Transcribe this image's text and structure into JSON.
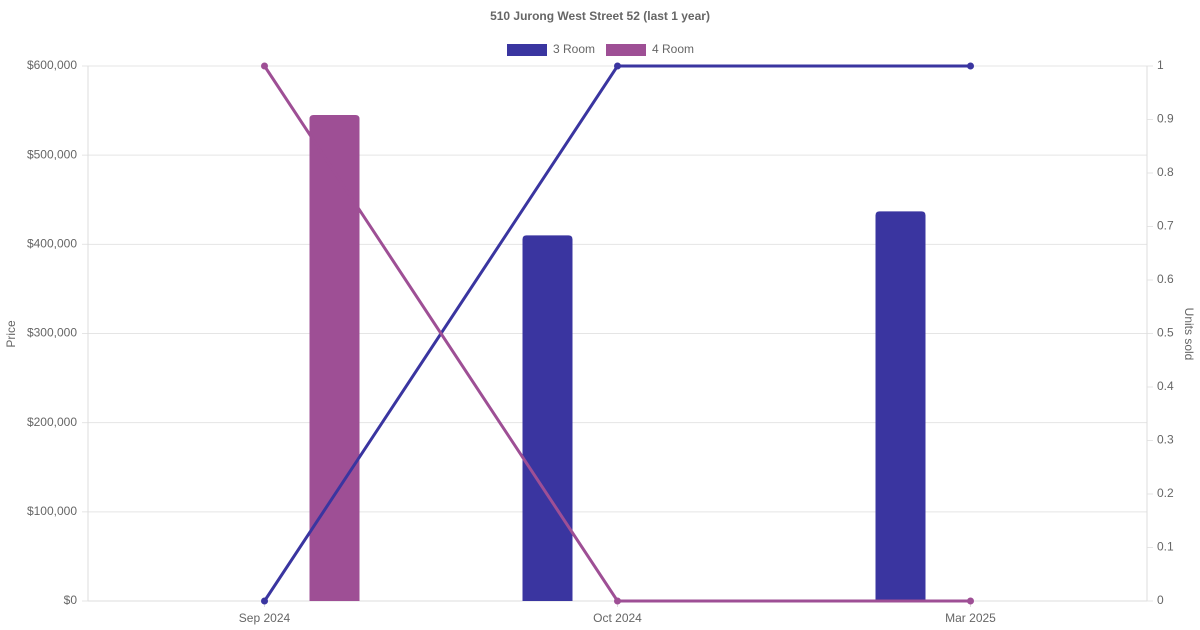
{
  "chart_data": {
    "type": "bar-line",
    "title": "510 Jurong West Street 52 (last 1 year)",
    "y_label": "Price",
    "y2_label": "Units sold",
    "categories": [
      "Sep 2024",
      "Oct 2024",
      "Mar 2025"
    ],
    "series": [
      {
        "name": "3 Room",
        "type": "bar",
        "color": "#3a35a0",
        "values": [
          null,
          410000,
          437000
        ]
      },
      {
        "name": "4 Room",
        "type": "bar",
        "color": "#9e4f95",
        "values": [
          545000,
          null,
          null
        ]
      },
      {
        "name": "3 Room",
        "type": "line",
        "axis": "y2",
        "color": "#3a35a0",
        "values": [
          0,
          1,
          1
        ]
      },
      {
        "name": "4 Room",
        "type": "line",
        "axis": "y2",
        "color": "#9e4f95",
        "values": [
          1,
          0,
          0
        ]
      }
    ],
    "ylim": [
      0,
      600000
    ],
    "yticks": [
      {
        "value": 0,
        "label": "$0"
      },
      {
        "value": 100000,
        "label": "$100,000"
      },
      {
        "value": 200000,
        "label": "$200,000"
      },
      {
        "value": 300000,
        "label": "$300,000"
      },
      {
        "value": 400000,
        "label": "$400,000"
      },
      {
        "value": 500000,
        "label": "$500,000"
      },
      {
        "value": 600000,
        "label": "$600,000"
      }
    ],
    "y2lim": [
      0,
      1
    ],
    "y2ticks": [
      0,
      0.1,
      0.2,
      0.3,
      0.4,
      0.5,
      0.6,
      0.7,
      0.8,
      0.9,
      1
    ],
    "grid": true,
    "legend": "top"
  }
}
